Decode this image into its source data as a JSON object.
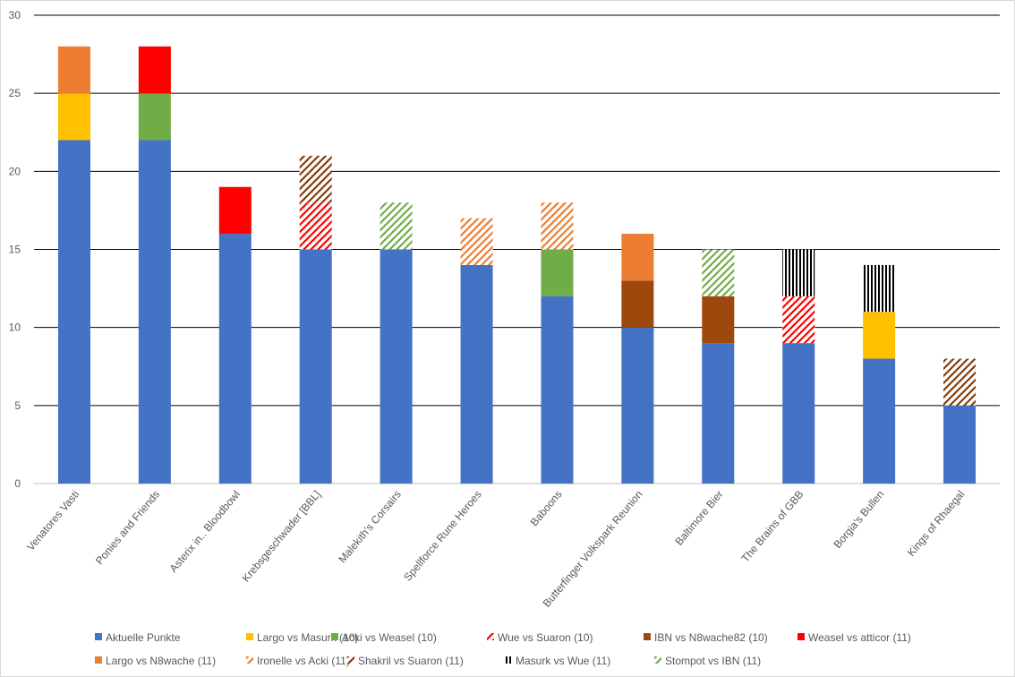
{
  "chart_data": {
    "type": "bar",
    "stacked": true,
    "title": "",
    "xlabel": "",
    "ylabel": "",
    "ylim": [
      0,
      30
    ],
    "yticks": [
      0,
      5,
      10,
      15,
      20,
      25,
      30
    ],
    "grid": true,
    "legend_position": "bottom",
    "categories": [
      "Venatores Vasti",
      "Ponies and Friends",
      "Asterix in.. Bloodbowl",
      "Krebsgeschwader [BBL]",
      "Malekith's Corsairs",
      "Spellforce Rune Heroes",
      "Baboons",
      "Butterfinger Volkspark Reunion",
      "Baltimore Bier",
      "The Brains of GBB",
      "Borgia's Bullen",
      "Kings of Rhaegal"
    ],
    "series": [
      {
        "name": "Aktuelle Punkte",
        "color": "#4472C4",
        "pattern": "solid",
        "values": [
          22,
          22,
          16,
          15,
          15,
          14,
          12,
          10,
          9,
          9,
          8,
          5
        ]
      },
      {
        "name": "Largo vs Masurk (10)",
        "color": "#FFC000",
        "pattern": "solid",
        "values": [
          3,
          0,
          0,
          0,
          0,
          0,
          0,
          0,
          0,
          0,
          3,
          0
        ]
      },
      {
        "name": "Acki vs Weasel (10)",
        "color": "#70AD47",
        "pattern": "solid",
        "values": [
          0,
          3,
          0,
          0,
          0,
          0,
          3,
          0,
          0,
          0,
          0,
          0
        ]
      },
      {
        "name": "Wue vs Suaron (10)",
        "color": "#FF0000",
        "pattern": "diag",
        "values": [
          0,
          0,
          0,
          3,
          0,
          0,
          0,
          0,
          0,
          3,
          0,
          0
        ]
      },
      {
        "name": "IBN  vs N8wache82 (10)",
        "color": "#9E480E",
        "pattern": "solid",
        "values": [
          0,
          0,
          0,
          0,
          0,
          0,
          0,
          3,
          3,
          0,
          0,
          0
        ]
      },
      {
        "name": "Weasel vs atticor (11)",
        "color": "#FF0000",
        "pattern": "solid",
        "values": [
          0,
          3,
          3,
          0,
          0,
          0,
          0,
          0,
          0,
          0,
          0,
          0
        ]
      },
      {
        "name": "Largo vs N8wache (11)",
        "color": "#ED7D31",
        "pattern": "solid",
        "values": [
          3,
          0,
          0,
          0,
          0,
          0,
          0,
          3,
          0,
          0,
          0,
          0
        ]
      },
      {
        "name": "Ironelle vs Acki (11)",
        "color": "#ED7D31",
        "pattern": "diag",
        "values": [
          0,
          0,
          0,
          0,
          0,
          3,
          3,
          0,
          0,
          0,
          0,
          0
        ]
      },
      {
        "name": "Shakril vs Suaron (11)",
        "color": "#843C0C",
        "pattern": "diag",
        "values": [
          0,
          0,
          0,
          3,
          0,
          0,
          0,
          0,
          0,
          0,
          0,
          3
        ]
      },
      {
        "name": "Masurk vs Wue (11)",
        "color": "#000000",
        "pattern": "vert",
        "values": [
          0,
          0,
          0,
          0,
          0,
          0,
          0,
          0,
          0,
          3,
          3,
          0
        ]
      },
      {
        "name": "Stompot vs IBN (11)",
        "color": "#70AD47",
        "pattern": "diag",
        "values": [
          0,
          0,
          0,
          0,
          3,
          0,
          0,
          0,
          3,
          0,
          0,
          0
        ]
      }
    ]
  }
}
